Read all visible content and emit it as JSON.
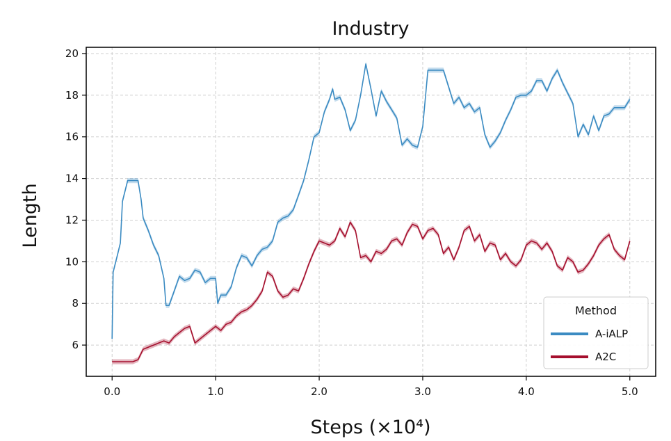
{
  "chart_data": {
    "type": "line",
    "title": "Industry",
    "xlabel": "Steps (×10⁴)",
    "ylabel": "Length",
    "xlim": [
      -0.25,
      5.25
    ],
    "ylim": [
      4.5,
      20.3
    ],
    "xticks": [
      0.0,
      1.0,
      2.0,
      3.0,
      4.0,
      5.0
    ],
    "xtick_labels": [
      "0.0",
      "1.0",
      "2.0",
      "3.0",
      "4.0",
      "5.0"
    ],
    "yticks": [
      6,
      8,
      10,
      12,
      14,
      16,
      18,
      20
    ],
    "ytick_labels": [
      "6",
      "8",
      "10",
      "12",
      "14",
      "16",
      "18",
      "20"
    ],
    "grid": true,
    "legend": {
      "title": "Method",
      "placement": "lower-right"
    },
    "series": [
      {
        "name": "A-iALP",
        "color": "#3b8bc2",
        "x": [
          0.0,
          0.01,
          0.05,
          0.08,
          0.1,
          0.12,
          0.15,
          0.2,
          0.25,
          0.28,
          0.3,
          0.35,
          0.4,
          0.45,
          0.5,
          0.52,
          0.54,
          0.55,
          0.6,
          0.65,
          0.7,
          0.75,
          0.8,
          0.85,
          0.9,
          0.95,
          1.0,
          1.02,
          1.05,
          1.1,
          1.15,
          1.2,
          1.25,
          1.3,
          1.35,
          1.4,
          1.45,
          1.5,
          1.55,
          1.6,
          1.65,
          1.7,
          1.75,
          1.8,
          1.85,
          1.9,
          1.95,
          2.0,
          2.05,
          2.1,
          2.13,
          2.15,
          2.2,
          2.25,
          2.3,
          2.35,
          2.4,
          2.45,
          2.5,
          2.55,
          2.6,
          2.65,
          2.7,
          2.75,
          2.8,
          2.85,
          2.9,
          2.95,
          3.0,
          3.05,
          3.1,
          3.15,
          3.2,
          3.25,
          3.3,
          3.35,
          3.4,
          3.45,
          3.5,
          3.55,
          3.6,
          3.65,
          3.7,
          3.75,
          3.8,
          3.85,
          3.9,
          3.95,
          4.0,
          4.05,
          4.1,
          4.15,
          4.2,
          4.25,
          4.3,
          4.35,
          4.4,
          4.45,
          4.5,
          4.55,
          4.6,
          4.65,
          4.7,
          4.75,
          4.8,
          4.85,
          4.9,
          4.95,
          5.0
        ],
        "y": [
          6.3,
          9.5,
          10.3,
          10.9,
          12.9,
          13.3,
          13.9,
          13.9,
          13.9,
          13.0,
          12.1,
          11.5,
          10.8,
          10.3,
          9.2,
          7.9,
          7.9,
          7.9,
          8.6,
          9.3,
          9.1,
          9.2,
          9.6,
          9.5,
          9.0,
          9.2,
          9.2,
          8.0,
          8.4,
          8.4,
          8.8,
          9.7,
          10.3,
          10.2,
          9.8,
          10.3,
          10.6,
          10.7,
          11.0,
          11.9,
          12.1,
          12.2,
          12.5,
          13.2,
          13.9,
          14.9,
          16.0,
          16.2,
          17.2,
          17.8,
          18.3,
          17.8,
          17.9,
          17.3,
          16.3,
          16.8,
          18.0,
          19.5,
          18.3,
          17.0,
          18.2,
          17.7,
          17.3,
          16.9,
          15.6,
          15.9,
          15.6,
          15.5,
          16.5,
          19.2,
          19.2,
          19.2,
          19.2,
          18.4,
          17.6,
          17.9,
          17.4,
          17.6,
          17.2,
          17.4,
          16.1,
          15.5,
          15.8,
          16.2,
          16.8,
          17.3,
          17.9,
          18.0,
          18.0,
          18.2,
          18.7,
          18.7,
          18.2,
          18.8,
          19.2,
          18.6,
          18.1,
          17.6,
          16.0,
          16.6,
          16.1,
          17.0,
          16.3,
          17.0,
          17.1,
          17.4,
          17.4,
          17.4,
          17.8
        ]
      },
      {
        "name": "A2C",
        "color": "#a50f2d",
        "x": [
          0.0,
          0.05,
          0.1,
          0.15,
          0.2,
          0.25,
          0.3,
          0.35,
          0.4,
          0.45,
          0.5,
          0.55,
          0.6,
          0.65,
          0.7,
          0.75,
          0.8,
          0.85,
          0.9,
          0.95,
          1.0,
          1.05,
          1.1,
          1.15,
          1.2,
          1.25,
          1.3,
          1.35,
          1.4,
          1.45,
          1.5,
          1.55,
          1.6,
          1.65,
          1.7,
          1.75,
          1.8,
          1.85,
          1.9,
          1.95,
          2.0,
          2.05,
          2.1,
          2.15,
          2.2,
          2.25,
          2.3,
          2.35,
          2.4,
          2.45,
          2.5,
          2.55,
          2.6,
          2.65,
          2.7,
          2.75,
          2.8,
          2.85,
          2.9,
          2.95,
          3.0,
          3.05,
          3.1,
          3.15,
          3.2,
          3.25,
          3.3,
          3.35,
          3.4,
          3.45,
          3.5,
          3.55,
          3.6,
          3.65,
          3.7,
          3.75,
          3.8,
          3.85,
          3.9,
          3.95,
          4.0,
          4.05,
          4.1,
          4.15,
          4.2,
          4.25,
          4.3,
          4.35,
          4.4,
          4.45,
          4.5,
          4.55,
          4.6,
          4.65,
          4.7,
          4.75,
          4.8,
          4.85,
          4.9,
          4.95,
          5.0
        ],
        "y": [
          5.2,
          5.2,
          5.2,
          5.2,
          5.2,
          5.3,
          5.8,
          5.9,
          6.0,
          6.1,
          6.2,
          6.1,
          6.4,
          6.6,
          6.8,
          6.9,
          6.1,
          6.3,
          6.5,
          6.7,
          6.9,
          6.7,
          7.0,
          7.1,
          7.4,
          7.6,
          7.7,
          7.9,
          8.2,
          8.6,
          9.5,
          9.3,
          8.6,
          8.3,
          8.4,
          8.7,
          8.6,
          9.2,
          9.9,
          10.5,
          11.0,
          10.9,
          10.8,
          11.0,
          11.6,
          11.2,
          11.9,
          11.5,
          10.2,
          10.3,
          10.0,
          10.5,
          10.4,
          10.6,
          11.0,
          11.1,
          10.8,
          11.4,
          11.8,
          11.7,
          11.1,
          11.5,
          11.6,
          11.3,
          10.4,
          10.7,
          10.1,
          10.7,
          11.5,
          11.7,
          11.0,
          11.3,
          10.5,
          10.9,
          10.8,
          10.1,
          10.4,
          10.0,
          9.8,
          10.1,
          10.8,
          11.0,
          10.9,
          10.6,
          10.9,
          10.5,
          9.8,
          9.6,
          10.2,
          10.0,
          9.5,
          9.6,
          9.9,
          10.3,
          10.8,
          11.1,
          11.3,
          10.6,
          10.3,
          10.1,
          11.0
        ]
      }
    ]
  }
}
